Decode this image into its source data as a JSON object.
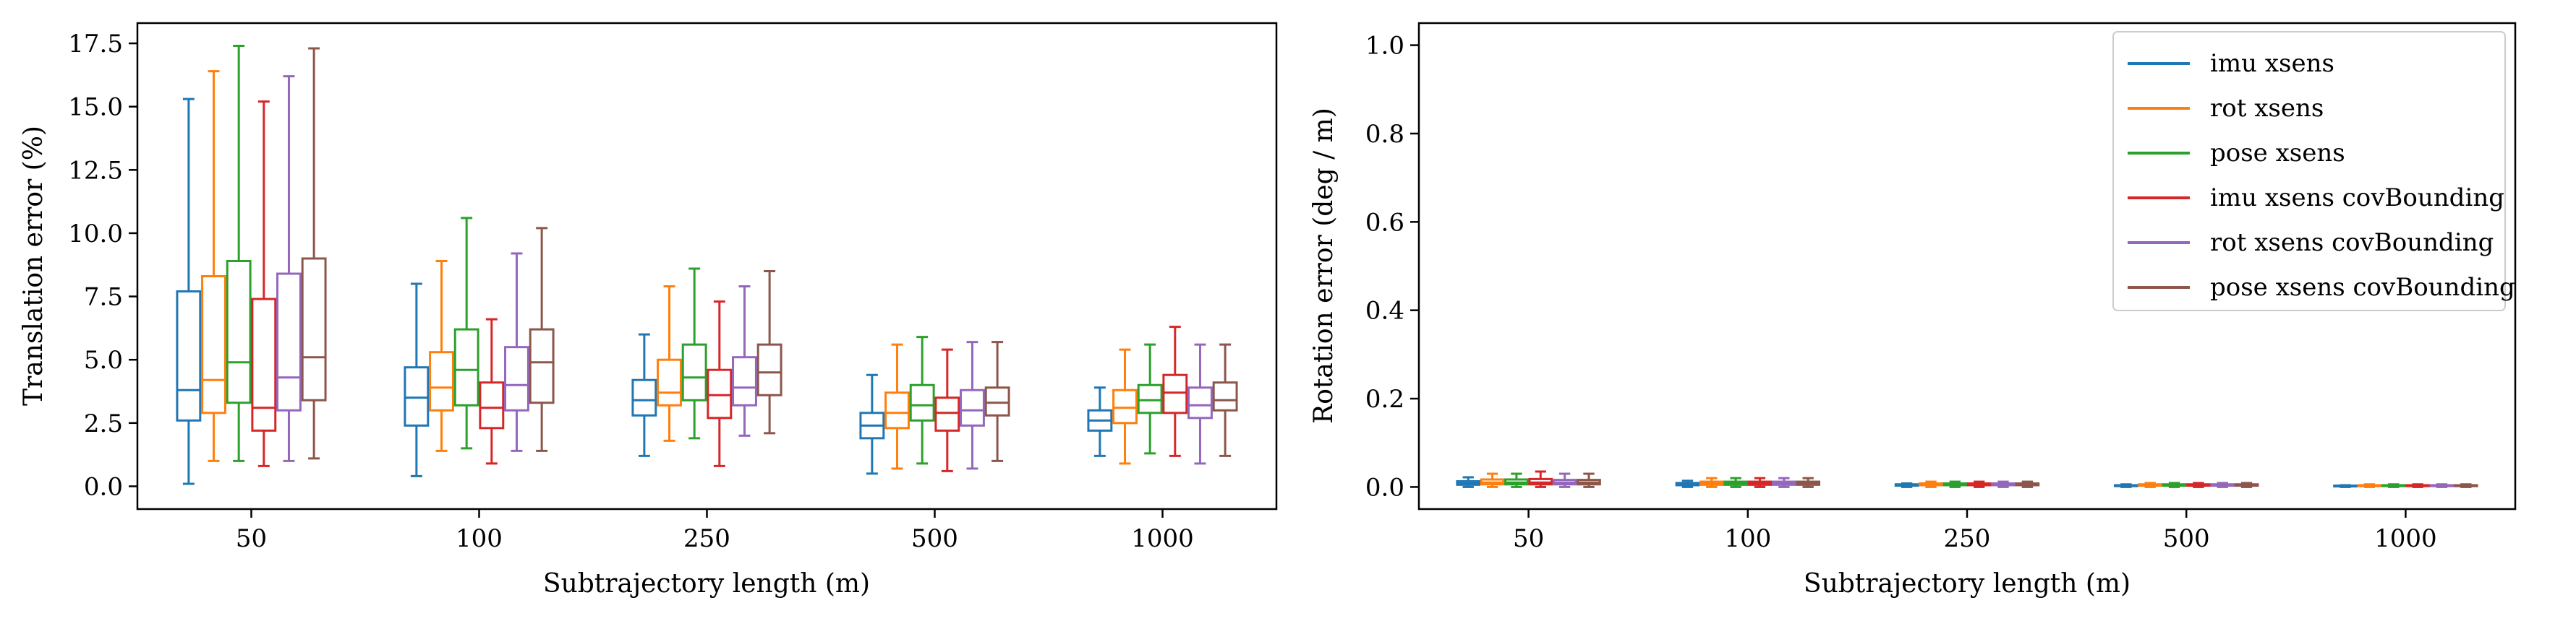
{
  "colors": {
    "series": [
      "#1f77b4",
      "#ff7f0e",
      "#2ca02c",
      "#d62728",
      "#9467bd",
      "#8c564b"
    ],
    "axes": "#000000",
    "legend_border": "#cccccc"
  },
  "chart_data": [
    {
      "type": "boxplot",
      "xlabel": "Subtrajectory length (m)",
      "ylabel": "Translation error (%)",
      "categories": [
        "50",
        "100",
        "250",
        "500",
        "1000"
      ],
      "ylim": [
        -0.9,
        18.3
      ],
      "yticks": [
        0.0,
        2.5,
        5.0,
        7.5,
        10.0,
        12.5,
        15.0,
        17.5
      ],
      "ytick_labels": [
        "0.0",
        "2.5",
        "5.0",
        "7.5",
        "10.0",
        "12.5",
        "15.0",
        "17.5"
      ],
      "grid": false,
      "series": [
        {
          "name": "imu xsens",
          "boxes": [
            {
              "whislo": 0.1,
              "q1": 2.6,
              "med": 3.8,
              "q3": 7.7,
              "whishi": 15.3
            },
            {
              "whislo": 0.4,
              "q1": 2.4,
              "med": 3.5,
              "q3": 4.7,
              "whishi": 8.0
            },
            {
              "whislo": 1.2,
              "q1": 2.8,
              "med": 3.4,
              "q3": 4.2,
              "whishi": 6.0
            },
            {
              "whislo": 0.5,
              "q1": 1.9,
              "med": 2.4,
              "q3": 2.9,
              "whishi": 4.4
            },
            {
              "whislo": 1.2,
              "q1": 2.2,
              "med": 2.6,
              "q3": 3.0,
              "whishi": 3.9
            }
          ]
        },
        {
          "name": "rot xsens",
          "boxes": [
            {
              "whislo": 1.0,
              "q1": 2.9,
              "med": 4.2,
              "q3": 8.3,
              "whishi": 16.4
            },
            {
              "whislo": 1.4,
              "q1": 3.0,
              "med": 3.9,
              "q3": 5.3,
              "whishi": 8.9
            },
            {
              "whislo": 1.8,
              "q1": 3.2,
              "med": 3.7,
              "q3": 5.0,
              "whishi": 7.9
            },
            {
              "whislo": 0.7,
              "q1": 2.3,
              "med": 2.9,
              "q3": 3.7,
              "whishi": 5.6
            },
            {
              "whislo": 0.9,
              "q1": 2.5,
              "med": 3.1,
              "q3": 3.8,
              "whishi": 5.4
            }
          ]
        },
        {
          "name": "pose xsens",
          "boxes": [
            {
              "whislo": 1.0,
              "q1": 3.3,
              "med": 4.9,
              "q3": 8.9,
              "whishi": 17.4
            },
            {
              "whislo": 1.5,
              "q1": 3.2,
              "med": 4.6,
              "q3": 6.2,
              "whishi": 10.6
            },
            {
              "whislo": 1.9,
              "q1": 3.4,
              "med": 4.3,
              "q3": 5.6,
              "whishi": 8.6
            },
            {
              "whislo": 0.9,
              "q1": 2.6,
              "med": 3.2,
              "q3": 4.0,
              "whishi": 5.9
            },
            {
              "whislo": 1.3,
              "q1": 2.9,
              "med": 3.4,
              "q3": 4.0,
              "whishi": 5.6
            }
          ]
        },
        {
          "name": "imu xsens covBounding",
          "boxes": [
            {
              "whislo": 0.8,
              "q1": 2.2,
              "med": 3.1,
              "q3": 7.4,
              "whishi": 15.2
            },
            {
              "whislo": 0.9,
              "q1": 2.3,
              "med": 3.1,
              "q3": 4.1,
              "whishi": 6.6
            },
            {
              "whislo": 0.8,
              "q1": 2.7,
              "med": 3.6,
              "q3": 4.6,
              "whishi": 7.3
            },
            {
              "whislo": 0.6,
              "q1": 2.2,
              "med": 2.9,
              "q3": 3.5,
              "whishi": 5.4
            },
            {
              "whislo": 1.2,
              "q1": 2.9,
              "med": 3.7,
              "q3": 4.4,
              "whishi": 6.3
            }
          ]
        },
        {
          "name": "rot xsens covBounding",
          "boxes": [
            {
              "whislo": 1.0,
              "q1": 3.0,
              "med": 4.3,
              "q3": 8.4,
              "whishi": 16.2
            },
            {
              "whislo": 1.4,
              "q1": 3.0,
              "med": 4.0,
              "q3": 5.5,
              "whishi": 9.2
            },
            {
              "whislo": 2.0,
              "q1": 3.2,
              "med": 3.9,
              "q3": 5.1,
              "whishi": 7.9
            },
            {
              "whislo": 0.7,
              "q1": 2.4,
              "med": 3.0,
              "q3": 3.8,
              "whishi": 5.7
            },
            {
              "whislo": 0.9,
              "q1": 2.7,
              "med": 3.2,
              "q3": 3.9,
              "whishi": 5.6
            }
          ]
        },
        {
          "name": "pose xsens covBounding",
          "boxes": [
            {
              "whislo": 1.1,
              "q1": 3.4,
              "med": 5.1,
              "q3": 9.0,
              "whishi": 17.3
            },
            {
              "whislo": 1.4,
              "q1": 3.3,
              "med": 4.9,
              "q3": 6.2,
              "whishi": 10.2
            },
            {
              "whislo": 2.1,
              "q1": 3.6,
              "med": 4.5,
              "q3": 5.6,
              "whishi": 8.5
            },
            {
              "whislo": 1.0,
              "q1": 2.8,
              "med": 3.3,
              "q3": 3.9,
              "whishi": 5.7
            },
            {
              "whislo": 1.2,
              "q1": 3.0,
              "med": 3.4,
              "q3": 4.1,
              "whishi": 5.6
            }
          ]
        }
      ]
    },
    {
      "type": "boxplot",
      "xlabel": "Subtrajectory length (m)",
      "ylabel": "Rotation error (deg / m)",
      "categories": [
        "50",
        "100",
        "250",
        "500",
        "1000"
      ],
      "ylim": [
        -0.05,
        1.05
      ],
      "yticks": [
        0.0,
        0.2,
        0.4,
        0.6,
        0.8,
        1.0
      ],
      "ytick_labels": [
        "0.0",
        "0.2",
        "0.4",
        "0.6",
        "0.8",
        "1.0"
      ],
      "grid": false,
      "legend_position": "top-right",
      "series": [
        {
          "name": "imu xsens",
          "boxes": [
            {
              "whislo": 0.0,
              "q1": 0.005,
              "med": 0.008,
              "q3": 0.013,
              "whishi": 0.022
            },
            {
              "whislo": 0.0,
              "q1": 0.004,
              "med": 0.006,
              "q3": 0.009,
              "whishi": 0.014
            },
            {
              "whislo": 0.0,
              "q1": 0.003,
              "med": 0.004,
              "q3": 0.006,
              "whishi": 0.008
            },
            {
              "whislo": 0.0,
              "q1": 0.002,
              "med": 0.003,
              "q3": 0.004,
              "whishi": 0.006
            },
            {
              "whislo": 0.0,
              "q1": 0.002,
              "med": 0.003,
              "q3": 0.003,
              "whishi": 0.004
            }
          ]
        },
        {
          "name": "rot xsens",
          "boxes": [
            {
              "whislo": 0.0,
              "q1": 0.006,
              "med": 0.01,
              "q3": 0.017,
              "whishi": 0.03
            },
            {
              "whislo": 0.0,
              "q1": 0.005,
              "med": 0.008,
              "q3": 0.012,
              "whishi": 0.02
            },
            {
              "whislo": 0.0,
              "q1": 0.004,
              "med": 0.006,
              "q3": 0.008,
              "whishi": 0.012
            },
            {
              "whislo": 0.0,
              "q1": 0.003,
              "med": 0.004,
              "q3": 0.006,
              "whishi": 0.009
            },
            {
              "whislo": 0.0,
              "q1": 0.002,
              "med": 0.003,
              "q3": 0.004,
              "whishi": 0.006
            }
          ]
        },
        {
          "name": "pose xsens",
          "boxes": [
            {
              "whislo": 0.0,
              "q1": 0.006,
              "med": 0.01,
              "q3": 0.017,
              "whishi": 0.03
            },
            {
              "whislo": 0.0,
              "q1": 0.005,
              "med": 0.008,
              "q3": 0.012,
              "whishi": 0.02
            },
            {
              "whislo": 0.0,
              "q1": 0.004,
              "med": 0.006,
              "q3": 0.008,
              "whishi": 0.012
            },
            {
              "whislo": 0.0,
              "q1": 0.003,
              "med": 0.004,
              "q3": 0.006,
              "whishi": 0.009
            },
            {
              "whislo": 0.0,
              "q1": 0.002,
              "med": 0.003,
              "q3": 0.004,
              "whishi": 0.006
            }
          ]
        },
        {
          "name": "imu xsens covBounding",
          "boxes": [
            {
              "whislo": 0.0,
              "q1": 0.006,
              "med": 0.01,
              "q3": 0.018,
              "whishi": 0.035
            },
            {
              "whislo": 0.0,
              "q1": 0.005,
              "med": 0.008,
              "q3": 0.012,
              "whishi": 0.02
            },
            {
              "whislo": 0.0,
              "q1": 0.004,
              "med": 0.006,
              "q3": 0.008,
              "whishi": 0.012
            },
            {
              "whislo": 0.0,
              "q1": 0.003,
              "med": 0.004,
              "q3": 0.006,
              "whishi": 0.009
            },
            {
              "whislo": 0.0,
              "q1": 0.002,
              "med": 0.003,
              "q3": 0.004,
              "whishi": 0.006
            }
          ]
        },
        {
          "name": "rot xsens covBounding",
          "boxes": [
            {
              "whislo": 0.0,
              "q1": 0.006,
              "med": 0.01,
              "q3": 0.016,
              "whishi": 0.03
            },
            {
              "whislo": 0.0,
              "q1": 0.005,
              "med": 0.008,
              "q3": 0.012,
              "whishi": 0.02
            },
            {
              "whislo": 0.0,
              "q1": 0.004,
              "med": 0.006,
              "q3": 0.008,
              "whishi": 0.012
            },
            {
              "whislo": 0.0,
              "q1": 0.003,
              "med": 0.004,
              "q3": 0.006,
              "whishi": 0.009
            },
            {
              "whislo": 0.0,
              "q1": 0.002,
              "med": 0.003,
              "q3": 0.004,
              "whishi": 0.006
            }
          ]
        },
        {
          "name": "pose xsens covBounding",
          "boxes": [
            {
              "whislo": 0.0,
              "q1": 0.006,
              "med": 0.01,
              "q3": 0.016,
              "whishi": 0.03
            },
            {
              "whislo": 0.0,
              "q1": 0.005,
              "med": 0.008,
              "q3": 0.012,
              "whishi": 0.02
            },
            {
              "whislo": 0.0,
              "q1": 0.004,
              "med": 0.006,
              "q3": 0.008,
              "whishi": 0.012
            },
            {
              "whislo": 0.0,
              "q1": 0.003,
              "med": 0.004,
              "q3": 0.006,
              "whishi": 0.009
            },
            {
              "whislo": 0.0,
              "q1": 0.002,
              "med": 0.003,
              "q3": 0.004,
              "whishi": 0.006
            }
          ]
        }
      ]
    }
  ]
}
